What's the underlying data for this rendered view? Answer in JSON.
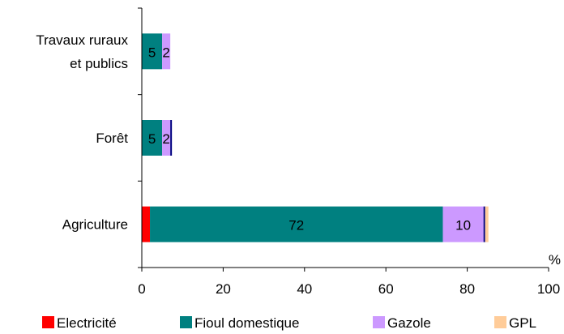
{
  "chart_data": {
    "type": "bar",
    "orientation": "horizontal",
    "stacked": true,
    "categories": [
      [
        "Travaux ruraux",
        "et publics"
      ],
      [
        "Forêt"
      ],
      [
        "Agriculture"
      ]
    ],
    "series": [
      {
        "name": "Electricité",
        "color": "#ff0000",
        "values": [
          0,
          0,
          2
        ],
        "labels": [
          "",
          "",
          ""
        ]
      },
      {
        "name": "Fioul domestique",
        "color": "#008080",
        "values": [
          5,
          5,
          72
        ],
        "labels": [
          "5",
          "5",
          "72"
        ]
      },
      {
        "name": "Gazole",
        "color": "#cc99ff",
        "values": [
          2,
          2,
          10
        ],
        "labels": [
          "2",
          "2",
          "10"
        ]
      },
      {
        "name": "",
        "color": "#000080",
        "values": [
          0,
          0.4,
          0.4
        ],
        "labels": [
          "",
          "",
          ""
        ]
      },
      {
        "name": "GPL",
        "color": "#ffcc99",
        "values": [
          0,
          0,
          0.8
        ],
        "labels": [
          "",
          "",
          ""
        ]
      }
    ],
    "xlim": [
      0,
      100
    ],
    "xticks": [
      0,
      20,
      40,
      60,
      80,
      100
    ],
    "xunit": "%",
    "grid": false,
    "legend_position": "bottom"
  }
}
